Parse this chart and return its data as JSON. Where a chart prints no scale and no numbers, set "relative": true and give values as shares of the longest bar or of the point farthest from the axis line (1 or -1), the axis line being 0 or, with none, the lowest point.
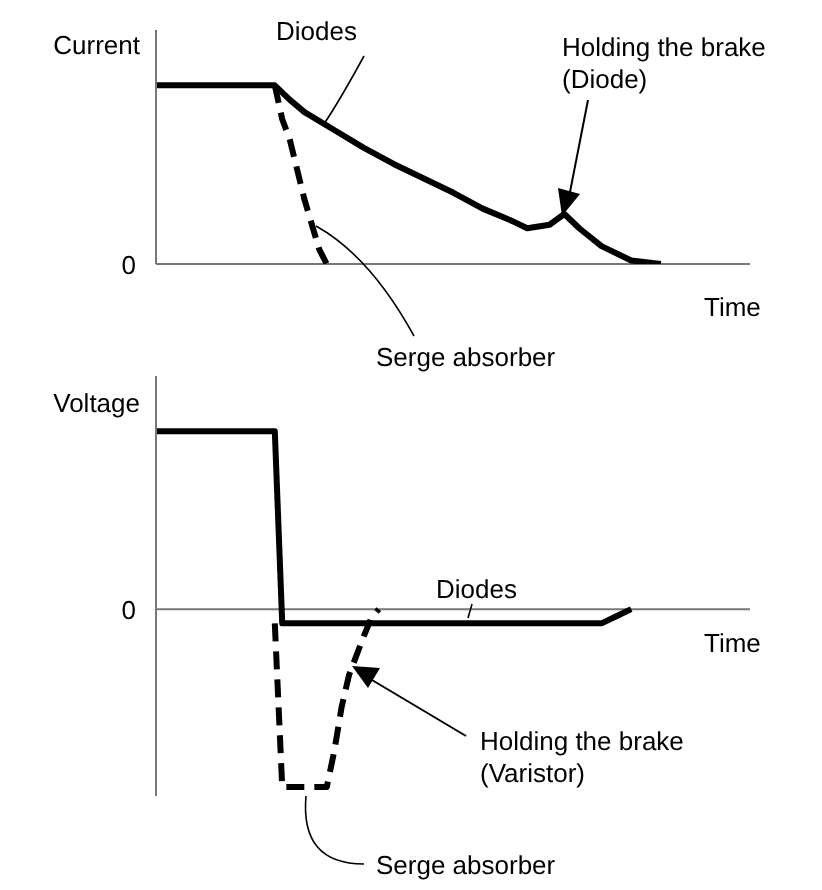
{
  "chart_data": [
    {
      "type": "line",
      "ylabel": "Current",
      "xlabel": "Time",
      "relative": true,
      "marker": "none",
      "categories": [
        null,
        null,
        null,
        null,
        null,
        null,
        null,
        null,
        null,
        null,
        null,
        null,
        null,
        null,
        null,
        null,
        null,
        null,
        null,
        null,
        null,
        null,
        null,
        null,
        null,
        null,
        null,
        null,
        null,
        null,
        null,
        null,
        null,
        null,
        null,
        null,
        null,
        null,
        null,
        null,
        null,
        null,
        null,
        null,
        null,
        null,
        null,
        null,
        null,
        null,
        null,
        null,
        null,
        null,
        null,
        null,
        null,
        null,
        null,
        null,
        null,
        null,
        null,
        null,
        null,
        null,
        null,
        null,
        null,
        null,
        null,
        null,
        null,
        null,
        null,
        null,
        null,
        null,
        null,
        null,
        null
      ],
      "series": [
        {
          "name": "Diodes",
          "color": "#000000",
          "line_style": "solid",
          "values": [
            1,
            null,
            null,
            null,
            null,
            null,
            null,
            null,
            null,
            null,
            null,
            null,
            null,
            null,
            null,
            null,
            1,
            null,
            0.92,
            null,
            0.85,
            null,
            null,
            null,
            0.75,
            null,
            null,
            null,
            0.65,
            null,
            null,
            null,
            0.56,
            null,
            null,
            null,
            0.48,
            null,
            null,
            null,
            0.4,
            null,
            null,
            null,
            0.31,
            null,
            null,
            null,
            0.24,
            null,
            0.2,
            null,
            null,
            0.22,
            null,
            0.28,
            null,
            0.2,
            null,
            null,
            0.1,
            null,
            null,
            null,
            0.02,
            null,
            null,
            null,
            0,
            null,
            null,
            null,
            null,
            null,
            null,
            null,
            null,
            null,
            null,
            null,
            null
          ]
        },
        {
          "name": "Serge absorber",
          "color": "#000000",
          "line_style": "dashed",
          "values": [
            null,
            null,
            null,
            null,
            null,
            null,
            null,
            null,
            null,
            null,
            null,
            null,
            null,
            null,
            null,
            null,
            1,
            0.81,
            0.7,
            null,
            0.36,
            null,
            0.08,
            0,
            null,
            null,
            null,
            null,
            null,
            null,
            null,
            null,
            null,
            null,
            null,
            null,
            null,
            null,
            null,
            null,
            null,
            null,
            null,
            null,
            null,
            null,
            null,
            null,
            null,
            null,
            null,
            null,
            null,
            null,
            null,
            null,
            null,
            null,
            null,
            null,
            null,
            null,
            null,
            null,
            null,
            null,
            null,
            null,
            null,
            null,
            null,
            null,
            null,
            null,
            null,
            null,
            null,
            null,
            null,
            null,
            null
          ]
        }
      ],
      "annotations": [
        "0",
        "Holding the brake\n(Diode)"
      ]
    },
    {
      "type": "line",
      "ylabel": "Voltage",
      "xlabel": "Time",
      "relative": true,
      "marker": "none",
      "categories": [
        null,
        null,
        null,
        null,
        null,
        null,
        null,
        null,
        null,
        null,
        null,
        null,
        null,
        null,
        null,
        null,
        null,
        null,
        null,
        null,
        null,
        null,
        null,
        null,
        null,
        null,
        null,
        null,
        null,
        null,
        null,
        null,
        null,
        null,
        null,
        null,
        null,
        null,
        null,
        null,
        null,
        null,
        null,
        null,
        null,
        null,
        null,
        null,
        null,
        null,
        null,
        null,
        null,
        null,
        null,
        null,
        null,
        null,
        null,
        null,
        null,
        null,
        null,
        null,
        null,
        null,
        null,
        null,
        null,
        null,
        null,
        null,
        null,
        null,
        null,
        null,
        null,
        null,
        null,
        null,
        null
      ],
      "series": [
        {
          "name": "Diodes",
          "color": "#000000",
          "line_style": "solid",
          "values": [
            1,
            null,
            null,
            null,
            null,
            null,
            null,
            null,
            null,
            null,
            null,
            null,
            null,
            null,
            null,
            null,
            1,
            -0.08,
            null,
            null,
            null,
            null,
            null,
            null,
            null,
            null,
            null,
            null,
            null,
            null,
            null,
            null,
            null,
            null,
            null,
            null,
            null,
            null,
            null,
            null,
            null,
            null,
            null,
            null,
            null,
            null,
            null,
            null,
            null,
            null,
            null,
            null,
            null,
            null,
            null,
            null,
            null,
            null,
            null,
            null,
            -0.08,
            null,
            -0.04,
            null,
            0,
            null,
            null,
            null,
            null,
            null,
            null,
            null,
            null,
            null,
            null,
            null,
            null,
            null,
            null,
            null,
            null
          ]
        },
        {
          "name": "Serge absorber",
          "color": "#000000",
          "line_style": "dashed",
          "values": [
            null,
            null,
            null,
            null,
            null,
            null,
            null,
            null,
            null,
            null,
            null,
            null,
            null,
            null,
            null,
            null,
            -0.08,
            -1,
            null,
            null,
            null,
            null,
            null,
            -1,
            -0.8,
            -0.55,
            -0.37,
            null,
            -0.15,
            -0.05,
            0,
            null,
            null,
            null,
            null,
            null,
            null,
            null,
            null,
            null,
            null,
            null,
            null,
            null,
            null,
            null,
            null,
            null,
            null,
            null,
            null,
            null,
            null,
            null,
            null,
            null,
            null,
            null,
            null,
            null,
            null,
            null,
            null,
            null,
            null,
            null,
            null,
            null,
            null,
            null,
            null,
            null,
            null,
            null,
            null,
            null,
            null,
            null,
            null,
            null,
            null
          ]
        }
      ],
      "annotations": [
        "0",
        "Holding the brake\n(Varistor)"
      ]
    }
  ]
}
